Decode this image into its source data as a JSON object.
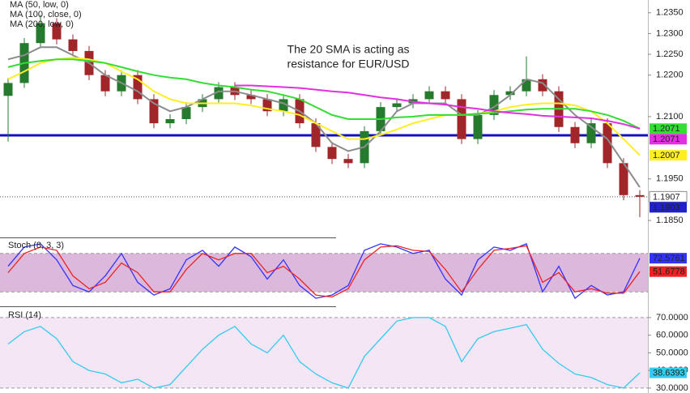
{
  "chart_data": [
    {
      "type": "candlestick",
      "legend_position": "top-left",
      "annotation": [
        "The 20 SMA is acting as",
        "resistance for EUR/USD"
      ],
      "annotation_color": "#ff1a1a",
      "up_color": "#267a2e",
      "down_color": "#a0262a",
      "last_close_color": "#ffffff",
      "ylim": [
        1.1815,
        1.2373
      ],
      "yticks": [
        {
          "value": 1.235,
          "label": "1.2350"
        },
        {
          "value": 1.23,
          "label": "1.2300"
        },
        {
          "value": 1.225,
          "label": "1.2250"
        },
        {
          "value": 1.22,
          "label": "1.2200"
        },
        {
          "value": 1.21,
          "label": "1.2100"
        },
        {
          "value": 1.195,
          "label": "1.1950"
        },
        {
          "value": 1.185,
          "label": "1.1850"
        }
      ],
      "support_level": 1.2055,
      "support_color": "#1010c0",
      "open": [
        1.215,
        1.2181,
        1.2277,
        1.2325,
        1.2286,
        1.2258,
        1.22,
        1.2161,
        1.22,
        1.2142,
        1.2084,
        1.2094,
        1.2123,
        1.2142,
        1.2171,
        1.2152,
        1.2142,
        1.2113,
        1.2142,
        1.2084,
        1.2027,
        1.1998,
        1.1988,
        1.2065,
        1.2123,
        1.2132,
        1.2142,
        1.2161,
        1.2142,
        1.2046,
        1.2104,
        1.2152,
        1.2161,
        1.219,
        1.2161,
        1.2075,
        1.2036,
        1.2084,
        1.1988,
        1.1911
      ],
      "high": [
        1.2193,
        1.2289,
        1.2345,
        1.2337,
        1.2298,
        1.227,
        1.2212,
        1.2212,
        1.2212,
        1.2154,
        1.2106,
        1.2135,
        1.2154,
        1.2183,
        1.2183,
        1.2164,
        1.2154,
        1.2154,
        1.2154,
        1.2096,
        1.2039,
        1.201,
        1.2077,
        1.2135,
        1.2144,
        1.2154,
        1.2173,
        1.2173,
        1.2154,
        1.2116,
        1.2164,
        1.2173,
        1.2245,
        1.2202,
        1.2173,
        1.2087,
        1.2096,
        1.2096,
        1.2,
        1.1923
      ],
      "low": [
        1.204,
        1.2169,
        1.2265,
        1.2274,
        1.2246,
        1.2188,
        1.2149,
        1.2149,
        1.213,
        1.2072,
        1.2072,
        1.2082,
        1.2111,
        1.213,
        1.214,
        1.213,
        1.2101,
        1.2101,
        1.2072,
        1.2015,
        1.1986,
        1.1976,
        1.1976,
        1.2053,
        1.2111,
        1.212,
        1.213,
        1.213,
        1.2034,
        1.2034,
        1.2092,
        1.214,
        1.2149,
        1.2149,
        1.2063,
        1.2024,
        1.2024,
        1.1976,
        1.1899,
        1.1858
      ],
      "close": [
        1.2181,
        1.2277,
        1.2325,
        1.2286,
        1.2258,
        1.22,
        1.2161,
        1.22,
        1.2142,
        1.2084,
        1.2094,
        1.2123,
        1.2142,
        1.2171,
        1.2152,
        1.2142,
        1.2113,
        1.2142,
        1.2084,
        1.2027,
        1.1998,
        1.1988,
        1.2065,
        1.2123,
        1.2132,
        1.2142,
        1.2161,
        1.2142,
        1.2046,
        1.2104,
        1.2152,
        1.2161,
        1.219,
        1.2161,
        1.2075,
        1.2036,
        1.2084,
        1.1988,
        1.1911,
        1.1907
      ],
      "series": [
        {
          "color": "#8c8c8c",
          "values": [
            1.2238,
            1.2248,
            1.2267,
            1.2267,
            1.2248,
            1.2229,
            1.22,
            1.2181,
            1.2161,
            1.2132,
            1.2113,
            1.2123,
            1.2142,
            1.2161,
            1.2161,
            1.2152,
            1.2142,
            1.2132,
            1.2113,
            1.2084,
            1.2036,
            1.2017,
            1.2027,
            1.2065,
            1.2113,
            1.2132,
            1.2132,
            1.2132,
            1.2104,
            1.2104,
            1.2123,
            1.2152,
            1.219,
            1.2181,
            1.2142,
            1.2104,
            1.2075,
            1.2046,
            1.1988,
            1.193
          ]
        },
        {
          "name": "MA (50, low, 0)",
          "color": "#ffee22",
          "show_last": true,
          "values": [
            1.219,
            1.2209,
            1.2229,
            1.2238,
            1.2242,
            1.2238,
            1.2229,
            1.2209,
            1.219,
            1.2161,
            1.2142,
            1.2132,
            1.2132,
            1.2132,
            1.2132,
            1.2127,
            1.2119,
            1.2113,
            1.2104,
            1.2084,
            1.2065,
            1.2046,
            1.2046,
            1.2056,
            1.2069,
            1.2084,
            1.2094,
            1.2104,
            1.2104,
            1.2107,
            1.2113,
            1.2123,
            1.2129,
            1.2132,
            1.2132,
            1.2127,
            1.2113,
            1.2084,
            1.2046,
            1.2007
          ]
        },
        {
          "name": "MA (100, close, 0)",
          "color": "#33dd33",
          "show_last": true,
          "values": [
            1.2219,
            1.2229,
            1.2234,
            1.2238,
            1.2238,
            1.2234,
            1.2229,
            1.2219,
            1.2209,
            1.22,
            1.2194,
            1.219,
            1.2181,
            1.2175,
            1.2171,
            1.2165,
            1.2161,
            1.2152,
            1.2142,
            1.2123,
            1.2104,
            1.2094,
            1.2094,
            1.2094,
            1.2098,
            1.21,
            1.2104,
            1.2104,
            1.2104,
            1.2107,
            1.2109,
            1.2113,
            1.2117,
            1.2119,
            1.2119,
            1.2119,
            1.2113,
            1.2104,
            1.209,
            1.2071
          ]
        },
        {
          "name": "MA (200, low, 0)",
          "color": "#e030e0",
          "show_last": true,
          "values": [
            null,
            null,
            null,
            null,
            null,
            null,
            null,
            null,
            null,
            null,
            null,
            null,
            null,
            null,
            1.2175,
            1.2175,
            1.2173,
            1.2171,
            1.2169,
            1.2165,
            1.2161,
            1.2158,
            1.2152,
            1.2146,
            1.2142,
            1.2136,
            1.2132,
            1.2129,
            1.2123,
            1.2119,
            1.2113,
            1.2109,
            1.2106,
            1.2102,
            1.21,
            1.2098,
            1.2096,
            1.209,
            1.2082,
            1.2071
          ]
        }
      ],
      "price_labels": [
        {
          "value": 1.1903,
          "color": "#2020cc"
        }
      ]
    },
    {
      "type": "line",
      "title": "Stoch (8, 3, 3)",
      "ylim": [
        0,
        100
      ],
      "levels": [
        20,
        80
      ],
      "band_color": "#dcb8dc",
      "series": [
        {
          "color": "#3333ff",
          "show_last": true,
          "values": [
            60,
            90,
            95,
            70,
            30,
            20,
            45,
            80,
            35,
            15,
            25,
            70,
            85,
            60,
            90,
            75,
            40,
            70,
            30,
            10,
            15,
            30,
            85,
            95,
            90,
            80,
            85,
            40,
            15,
            70,
            90,
            85,
            95,
            20,
            60,
            10,
            30,
            15,
            20,
            72.5761
          ]
        },
        {
          "color": "#ee2222",
          "show_last": true,
          "values": [
            50,
            80,
            90,
            85,
            45,
            25,
            35,
            65,
            50,
            20,
            20,
            55,
            80,
            70,
            80,
            80,
            50,
            60,
            40,
            15,
            12,
            25,
            70,
            90,
            92,
            85,
            83,
            55,
            20,
            55,
            85,
            88,
            92,
            35,
            50,
            20,
            25,
            18,
            18,
            51.6778
          ]
        }
      ]
    },
    {
      "type": "line",
      "title": "RSI (14)",
      "ylim": [
        27.2,
        74.1
      ],
      "levels": [
        30,
        70
      ],
      "band_color": "#f5e6f5",
      "yticks": [
        {
          "value": 70,
          "label": "70.0000"
        },
        {
          "value": 60,
          "label": "60.0000"
        },
        {
          "value": 50,
          "label": "50.0000"
        },
        {
          "value": 40,
          "label": "40.0000"
        },
        {
          "value": 30,
          "label": "30.0000"
        }
      ],
      "series": [
        {
          "color": "#33ccee",
          "show_last": true,
          "values": [
            55,
            62,
            65,
            58,
            45,
            40,
            38,
            33,
            35,
            30,
            32,
            42,
            52,
            60,
            65,
            55,
            50,
            60,
            45,
            38,
            33,
            30,
            48,
            58,
            68,
            70,
            70,
            65,
            45,
            58,
            62,
            64,
            66,
            52,
            44,
            38,
            36,
            32,
            30,
            38.6393
          ]
        }
      ]
    }
  ]
}
